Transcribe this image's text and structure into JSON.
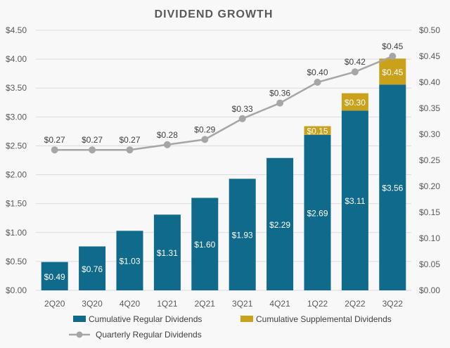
{
  "chart_data": {
    "type": "bar",
    "title": "DIVIDEND GROWTH",
    "categories": [
      "2Q20",
      "3Q20",
      "4Q20",
      "1Q21",
      "2Q21",
      "3Q21",
      "4Q21",
      "1Q22",
      "2Q22",
      "3Q22"
    ],
    "y_left": {
      "ylim": [
        0,
        4.5
      ],
      "ticks": [
        0,
        0.5,
        1.0,
        1.5,
        2.0,
        2.5,
        3.0,
        3.5,
        4.0,
        4.5
      ],
      "tick_labels": [
        "$0.00",
        "$0.50",
        "$1.00",
        "$1.50",
        "$2.00",
        "$2.50",
        "$3.00",
        "$3.50",
        "$4.00",
        "$4.50"
      ]
    },
    "y_right": {
      "ylim": [
        0,
        0.5
      ],
      "ticks": [
        0,
        0.05,
        0.1,
        0.15,
        0.2,
        0.25,
        0.3,
        0.35,
        0.4,
        0.45,
        0.5
      ],
      "tick_labels": [
        "$0.00",
        "$0.05",
        "$0.10",
        "$0.15",
        "$0.20",
        "$0.25",
        "$0.30",
        "$0.35",
        "$0.40",
        "$0.45",
        "$0.50"
      ]
    },
    "series": [
      {
        "name": "Cumulative Regular Dividends",
        "kind": "stacked-bar",
        "axis": "left",
        "color": "#0f6a8b",
        "values": [
          0.49,
          0.76,
          1.03,
          1.31,
          1.6,
          1.93,
          2.29,
          2.69,
          3.11,
          3.56
        ],
        "labels": [
          "$0.49",
          "$0.76",
          "$1.03",
          "$1.31",
          "$1.60",
          "$1.93",
          "$2.29",
          "$2.69",
          "$3.11",
          "$3.56"
        ]
      },
      {
        "name": "Cumulative Supplemental Dividends",
        "kind": "stacked-bar",
        "axis": "left",
        "color": "#c9a11b",
        "values": [
          null,
          null,
          null,
          null,
          null,
          null,
          null,
          0.15,
          0.3,
          0.45
        ],
        "labels": [
          "",
          "",
          "",
          "",
          "",
          "",
          "",
          "$0.15",
          "$0.30",
          "$0.45"
        ]
      },
      {
        "name": "Quarterly Regular Dividends",
        "kind": "line",
        "axis": "right",
        "color": "#a6a6a6",
        "values": [
          0.27,
          0.27,
          0.27,
          0.28,
          0.29,
          0.33,
          0.36,
          0.4,
          0.42,
          0.45
        ],
        "labels": [
          "$0.27",
          "$0.27",
          "$0.27",
          "$0.28",
          "$0.29",
          "$0.33",
          "$0.36",
          "$0.40",
          "$0.42",
          "$0.45"
        ]
      }
    ],
    "legend_position": "bottom",
    "grid": true
  }
}
